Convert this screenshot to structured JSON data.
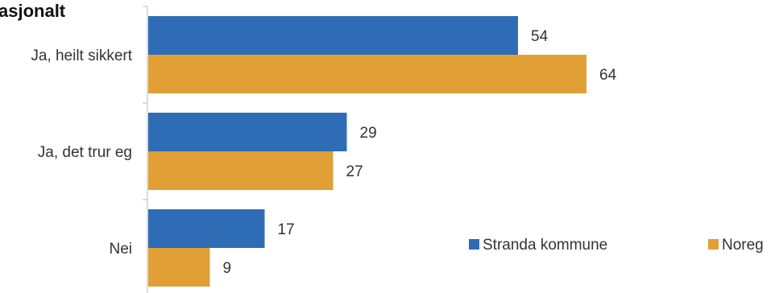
{
  "chart_data": {
    "type": "bar",
    "orientation": "horizontal",
    "title": "asjonalt",
    "categories": [
      "Ja, heilt sikkert",
      "Ja, det trur eg",
      "Nei"
    ],
    "series": [
      {
        "name": "Stranda kommune",
        "values": [
          54,
          29,
          17
        ],
        "color": "#2e6db5"
      },
      {
        "name": "Noreg",
        "values": [
          64,
          27,
          9
        ],
        "color": "#e0a035"
      }
    ],
    "xlim": [
      0,
      100
    ],
    "grid": false,
    "legend_position": "bottom-right"
  }
}
